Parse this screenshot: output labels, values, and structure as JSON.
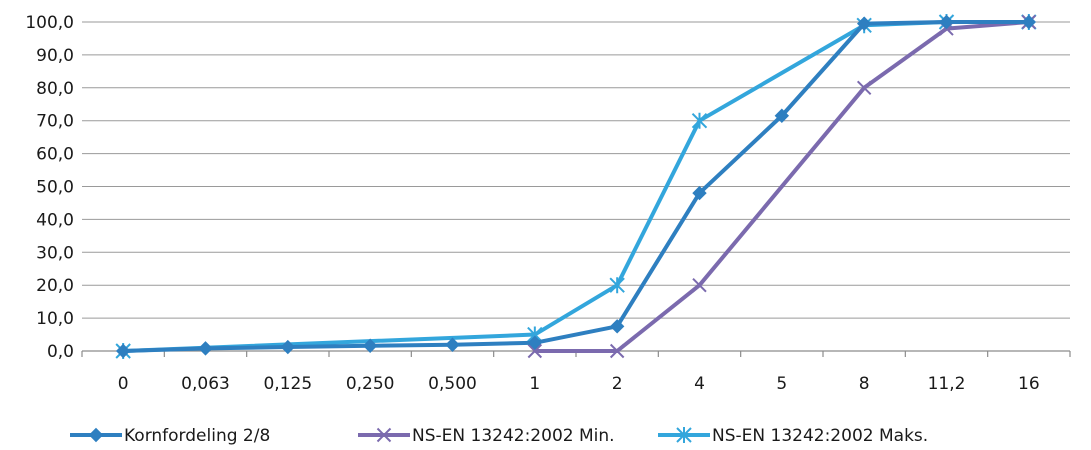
{
  "chart_data": {
    "type": "line",
    "categories": [
      "0",
      "0,063",
      "0,125",
      "0,250",
      "0,500",
      "1",
      "2",
      "4",
      "5",
      "8",
      "11,2",
      "16"
    ],
    "y_ticks": [
      "0,0",
      "10,0",
      "20,0",
      "30,0",
      "40,0",
      "50,0",
      "60,0",
      "70,0",
      "80,0",
      "90,0",
      "100,0"
    ],
    "ylim": [
      0,
      100
    ],
    "grid": true,
    "legend_position": "bottom",
    "series": [
      {
        "name": "Kornfordeling 2/8",
        "color": "#2e7fc0",
        "marker": "diamond",
        "values": [
          0,
          0.8,
          1.2,
          1.6,
          1.9,
          2.5,
          7.5,
          48,
          71.5,
          99.5,
          100,
          100
        ]
      },
      {
        "name": "NS-EN 13242:2002 Min.",
        "color": "#7b6aae",
        "marker": "x",
        "values": [
          null,
          null,
          null,
          null,
          null,
          0,
          0,
          20,
          null,
          80,
          98,
          100
        ]
      },
      {
        "name": "NS-EN 13242:2002 Maks.",
        "color": "#33a6dc",
        "marker": "star",
        "values": [
          0,
          null,
          null,
          null,
          null,
          5,
          20,
          70,
          null,
          99,
          100,
          100
        ]
      }
    ]
  }
}
